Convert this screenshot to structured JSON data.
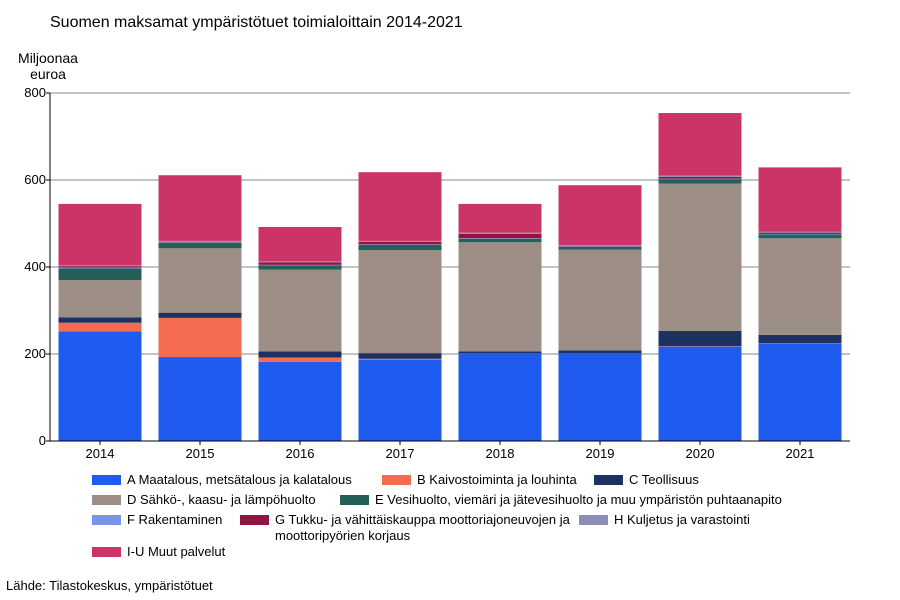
{
  "chart_data": {
    "type": "bar",
    "stacked": true,
    "title": "Suomen maksamat ympäristötuet toimialoittain 2014-2021",
    "ylabel": "Miljoonaa euroa",
    "xlabel": "",
    "ylim": [
      0,
      800
    ],
    "yticks": [
      0,
      200,
      400,
      600,
      800
    ],
    "grid": true,
    "legend_position": "bottom",
    "categories": [
      "2014",
      "2015",
      "2016",
      "2017",
      "2018",
      "2019",
      "2020",
      "2021"
    ],
    "series": [
      {
        "name": "A Maatalous, metsätalous ja kalatalous",
        "color": "#1f5bef",
        "values": [
          252,
          193,
          182,
          187,
          200,
          200,
          217,
          224
        ]
      },
      {
        "name": "B Kaivostoiminta ja louhinta",
        "color": "#f46b50",
        "values": [
          20,
          90,
          10,
          2,
          1,
          1,
          1,
          1
        ]
      },
      {
        "name": "C Teollisuus",
        "color": "#1c3263",
        "values": [
          12,
          12,
          14,
          13,
          5,
          7,
          35,
          19
        ]
      },
      {
        "name": "D Sähkö-, kaasu- ja lämpöhuolto",
        "color": "#9c8d85",
        "values": [
          86,
          148,
          188,
          237,
          251,
          232,
          339,
          222
        ]
      },
      {
        "name": "E Vesihuolto, viemäri ja jätevesihuolto ja muu ympäristön puhtaanapito",
        "color": "#245f59",
        "values": [
          27,
          13,
          10,
          12,
          8,
          6,
          10,
          9
        ]
      },
      {
        "name": "F Rakentaminen",
        "color": "#7896e8",
        "values": [
          2,
          1,
          1,
          1,
          1,
          1,
          1,
          1
        ]
      },
      {
        "name": "G Tukku- ja vähittäiskauppa moottoriajoneuvojen ja moottoripyörien korjaus",
        "color": "#8e1640",
        "values": [
          3,
          1,
          6,
          6,
          10,
          1,
          4,
          3
        ]
      },
      {
        "name": "H Kuljetus ja varastointi",
        "color": "#8c8fb4",
        "values": [
          2,
          2,
          2,
          2,
          3,
          2,
          3,
          2
        ]
      },
      {
        "name": "I-U Muut palvelut",
        "color": "#cc3468",
        "values": [
          141,
          151,
          79,
          158,
          66,
          138,
          144,
          148
        ]
      }
    ]
  },
  "source": "Lähde: Tilastokeskus, ympäristötuet"
}
